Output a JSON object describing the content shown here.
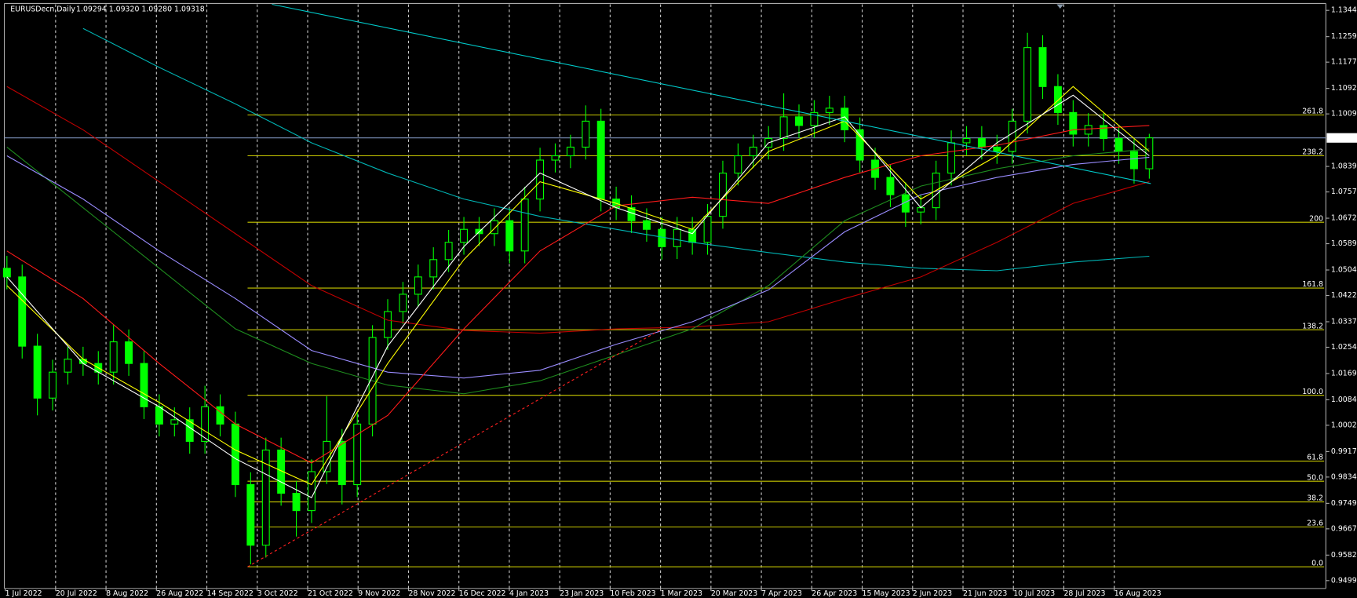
{
  "chart_data": {
    "type": "candlestick",
    "title": "EURUSDecn,Daily",
    "quote": "1.09294 1.09320 1.09280 1.09318",
    "candle_color": "#00ff00",
    "open": [
      1.051,
      1.0482,
      1.0258,
      1.009,
      1.0174,
      1.0216,
      1.0202,
      1.0174,
      1.0272,
      1.0202,
      1.0062,
      1.0006,
      1.002,
      0.995,
      1.0062,
      1.0006,
      0.981,
      0.9614,
      0.9922,
      0.9782,
      0.9726,
      0.9852,
      0.995,
      0.981,
      1.0006,
      1.0286,
      1.037,
      1.0426,
      1.0482,
      1.0538,
      1.0594,
      1.0636,
      1.0622,
      1.0664,
      1.0566,
      1.0734,
      1.086,
      1.0874,
      1.0902,
      1.0986,
      1.0734,
      1.0706,
      1.0664,
      1.0636,
      1.058,
      1.0636,
      1.0594,
      1.0678,
      1.0818,
      1.0874,
      1.0902,
      1.093,
      1.1,
      1.0972,
      1.1014,
      1.1028,
      1.0958,
      1.086,
      1.0804,
      1.0748,
      1.0692,
      1.0706,
      1.0818,
      1.0916,
      1.093,
      1.0902,
      1.0888,
      1.0986,
      1.1224,
      1.1098,
      1.1014,
      1.0944,
      1.0972,
      1.093,
      1.0888,
      1.0832
    ],
    "high": [
      1.055,
      1.0522,
      1.0298,
      1.0214,
      1.0256,
      1.0256,
      1.0242,
      1.0328,
      1.0312,
      1.0242,
      1.0102,
      1.006,
      1.006,
      1.013,
      1.0102,
      1.0046,
      0.985,
      0.9962,
      0.9962,
      0.9822,
      0.9892,
      1.0096,
      0.999,
      1.0046,
      1.0326,
      1.041,
      1.0466,
      1.0522,
      1.0578,
      1.0634,
      1.0676,
      1.0676,
      1.0704,
      1.0704,
      1.0774,
      1.09,
      1.0914,
      1.0942,
      1.1037,
      1.1026,
      1.0774,
      1.0746,
      1.0704,
      1.0676,
      1.0676,
      1.0676,
      1.0718,
      1.0858,
      1.0914,
      1.0942,
      1.097,
      1.1076,
      1.104,
      1.1054,
      1.1068,
      1.1068,
      1.0998,
      1.09,
      1.0844,
      1.0788,
      1.0746,
      1.0858,
      1.0956,
      1.097,
      1.097,
      1.0942,
      1.1026,
      1.1272,
      1.1264,
      1.1138,
      1.1054,
      1.1012,
      1.1012,
      1.097,
      1.0928,
      1.0945
    ],
    "low": [
      1.0442,
      1.0218,
      1.0034,
      1.005,
      1.0134,
      1.0162,
      1.0134,
      1.0134,
      1.0162,
      1.0022,
      0.9966,
      0.9966,
      0.991,
      0.991,
      0.9966,
      0.977,
      0.9552,
      0.9574,
      0.9742,
      0.9642,
      0.9686,
      0.9812,
      0.9746,
      0.977,
      0.9966,
      1.0246,
      1.033,
      1.0386,
      1.0442,
      1.0498,
      1.0554,
      1.0582,
      1.0582,
      1.0526,
      1.0526,
      1.0694,
      1.082,
      1.0834,
      1.0862,
      1.0694,
      1.0666,
      1.0624,
      1.0596,
      1.0538,
      1.054,
      1.0554,
      1.0554,
      1.0638,
      1.0778,
      1.0834,
      1.0862,
      1.089,
      1.0932,
      1.0932,
      1.0974,
      1.0918,
      1.082,
      1.0764,
      1.0708,
      1.0644,
      1.0652,
      1.0666,
      1.0778,
      1.0876,
      1.0862,
      1.0848,
      1.0848,
      1.0946,
      1.1058,
      1.0974,
      1.0904,
      1.0904,
      1.089,
      1.0848,
      1.0784,
      1.08
    ],
    "close": [
      1.0482,
      1.0258,
      1.009,
      1.0174,
      1.0216,
      1.0202,
      1.0174,
      1.0272,
      1.0202,
      1.0062,
      1.0006,
      1.002,
      0.995,
      1.0062,
      1.0006,
      0.981,
      0.9614,
      0.9922,
      0.9782,
      0.9726,
      0.9852,
      0.995,
      0.981,
      1.0006,
      1.0286,
      1.037,
      1.0426,
      1.0482,
      1.0538,
      1.0594,
      1.0636,
      1.0622,
      1.0664,
      1.0566,
      1.0734,
      1.086,
      1.0874,
      1.0902,
      1.0986,
      1.0734,
      1.0706,
      1.0664,
      1.0636,
      1.058,
      1.0636,
      1.0594,
      1.0678,
      1.0818,
      1.0874,
      1.0902,
      1.093,
      1.1,
      1.0972,
      1.1014,
      1.1028,
      1.0958,
      1.086,
      1.0804,
      1.0748,
      1.0692,
      1.0706,
      1.0818,
      1.0916,
      1.093,
      1.0902,
      1.0888,
      1.0986,
      1.1224,
      1.1098,
      1.1014,
      1.0944,
      1.0972,
      1.093,
      1.0888,
      1.0832,
      1.0932
    ],
    "ylim": [
      0.9474,
      1.1364
    ],
    "yticks": [
      1.13445,
      1.12595,
      {
        "value": 1.1177,
        "label": "1.11770"
      },
      {
        "value": 1.1092,
        "label": "1.10920"
      },
      1.10095,
      1.08395,
      {
        "value": 1.0757,
        "label": "1.07570"
      },
      {
        "value": 1.0672,
        "label": "1.06720"
      },
      1.05895,
      1.05045,
      {
        "value": 1.0422,
        "label": "1.04220"
      },
      {
        "value": 1.0337,
        "label": "1.03370"
      },
      1.02545,
      1.01695,
      1.00845,
      {
        "value": 1.0002,
        "label": "1.00020"
      },
      {
        "value": 0.9917,
        "label": "0.99170"
      },
      0.98345,
      0.97495,
      {
        "value": 0.9667,
        "label": "0.96670"
      },
      {
        "value": 0.9582,
        "label": "0.95820"
      },
      0.94995
    ],
    "x_labels": [
      "1 Jul 2022",
      "20 Jul 2022",
      "8 Aug 2022",
      "26 Aug 2022",
      "14 Sep 2022",
      "3 Oct 2022",
      "21 Oct 2022",
      "9 Nov 2022",
      "28 Nov 2022",
      "16 Dec 2022",
      "4 Jan 2023",
      "23 Jan 2023",
      "10 Feb 2023",
      "1 Mar 2023",
      "20 Mar 2023",
      "7 Apr 2023",
      "26 Apr 2023",
      "15 May 2023",
      "2 Jun 2023",
      "21 Jun 2023",
      "10 Jul 2023",
      "28 Jul 2023",
      "16 Aug 2023"
    ],
    "current_price": 1.09318,
    "current_price_color": "#7b8fb8",
    "moving_averages": {
      "index": [
        0,
        5,
        10,
        15,
        20,
        25,
        30,
        35,
        40,
        45,
        50,
        55,
        60,
        65,
        70,
        75
      ],
      "series": [
        {
          "color": "#00b4b4",
          "values": [
            null,
            1.1286,
            1.116,
            1.1042,
            1.0916,
            1.0818,
            1.0734,
            1.0678,
            1.0636,
            1.0594,
            1.0561,
            1.053,
            1.051,
            1.0502,
            1.053,
            1.0549
          ]
        },
        {
          "color": "#c00000",
          "values": [
            1.1098,
            1.0958,
            1.079,
            1.0622,
            1.0454,
            1.0342,
            1.0309,
            1.03,
            1.0314,
            1.032,
            1.0337,
            1.0412,
            1.0482,
            1.0594,
            1.072,
            1.079
          ]
        },
        {
          "color": "#1e8c1e",
          "values": [
            1.0902,
            1.0706,
            1.051,
            1.0314,
            1.0202,
            1.0132,
            1.0104,
            1.0146,
            1.023,
            1.0314,
            1.0454,
            1.0664,
            1.0776,
            1.0832,
            1.0874,
            1.0896
          ]
        },
        {
          "color": "#9a8cff",
          "values": [
            1.0874,
            1.0734,
            1.0566,
            1.0412,
            1.0244,
            1.0174,
            1.0155,
            1.018,
            1.0264,
            1.0337,
            1.044,
            1.0628,
            1.0748,
            1.0804,
            1.0846,
            1.0869
          ]
        },
        {
          "color": "#ff1a1a",
          "values": [
            1.0566,
            1.0412,
            1.0202,
            1.0006,
            0.988,
            1.0034,
            1.0314,
            1.0566,
            1.0712,
            1.074,
            1.072,
            1.0804,
            1.0874,
            1.0908,
            1.0958,
            1.0972
          ]
        },
        {
          "color": "#ffff00",
          "values": [
            1.0454,
            1.0216,
            1.0076,
            0.9922,
            0.981,
            1.0202,
            1.0538,
            1.079,
            1.072,
            1.0636,
            1.0888,
            1.0986,
            1.0734,
            1.0874,
            1.1098,
            1.0888
          ]
        },
        {
          "color": "#ffffff",
          "values": [
            1.0482,
            1.0202,
            1.0062,
            0.9894,
            0.9768,
            1.0258,
            1.058,
            1.0818,
            1.0706,
            1.0622,
            1.0916,
            1.1,
            1.0706,
            1.0916,
            1.107,
            1.0874
          ]
        }
      ]
    },
    "trendlines": [
      {
        "color": "#00c8c8",
        "index": [
          17.4,
          75.1
        ],
        "price": [
          1.1364,
          1.0784
        ]
      },
      {
        "color": "#ff2020",
        "dashed": true,
        "index": [
          15.8,
          43.0
        ],
        "price": [
          0.9544,
          1.0314
        ]
      }
    ],
    "fibonacci": {
      "color": "#c8c800",
      "from_index": 15.8,
      "levels": [
        {
          "label": "261.8",
          "price": 1.1006
        },
        {
          "label": "238.2",
          "price": 1.0874
        },
        {
          "label": "200",
          "price": 1.0659
        },
        {
          "label": "161.8",
          "price": 1.0446
        },
        {
          "label": "138.2",
          "price": 1.0311
        },
        {
          "label": "100.0",
          "price": 1.0099
        },
        {
          "label": "61.8",
          "price": 0.9886
        },
        {
          "label": "50.0",
          "price": 0.9821
        },
        {
          "label": "38.2",
          "price": 0.9754
        },
        {
          "label": "23.6",
          "price": 0.9673
        },
        {
          "label": "0.0",
          "price": 0.9544
        }
      ]
    }
  }
}
